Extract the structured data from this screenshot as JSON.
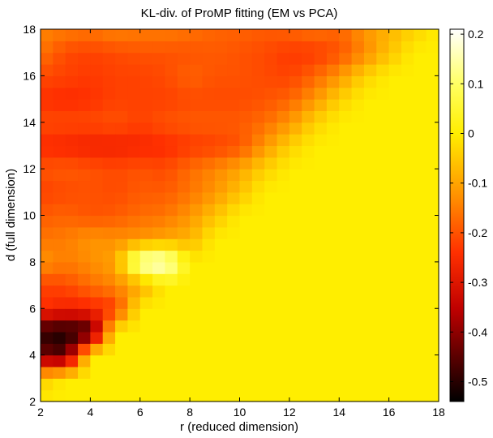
{
  "chart_data": {
    "type": "heatmap",
    "title": "KL-div. of ProMP fitting (EM vs PCA)",
    "xlabel": "r (reduced dimension)",
    "ylabel": "d (full dimension)",
    "xlim": [
      2,
      18
    ],
    "ylim": [
      2,
      18
    ],
    "x_ticks": [
      2,
      4,
      6,
      8,
      10,
      12,
      14,
      16,
      18
    ],
    "y_ticks": [
      2,
      4,
      6,
      8,
      10,
      12,
      14,
      16,
      18
    ],
    "grid": false,
    "colormap": "hot",
    "colorbar": {
      "range": [
        -0.54,
        0.21
      ],
      "ticks": [
        0.2,
        0.1,
        0,
        -0.1,
        -0.2,
        -0.3,
        -0.4,
        -0.5
      ],
      "tick_labels": [
        "0.2",
        "0.1",
        "0",
        "-0.1",
        "-0.2",
        "-0.3",
        "-0.4",
        "-0.5"
      ]
    },
    "note_region_r_ge_d": 0,
    "values_by_d": {
      "3": [
        -0.05,
        0.05
      ],
      "4": [
        -0.42,
        -0.46,
        -0.3,
        0.12
      ],
      "5": [
        -0.5,
        -0.52,
        -0.48,
        0.05
      ],
      "6": [
        -0.24,
        -0.27,
        -0.26,
        -0.23,
        -0.05
      ],
      "7": [
        -0.22,
        -0.21,
        -0.17,
        -0.14,
        -0.1,
        -0.05
      ],
      "8": [
        -0.12,
        -0.15,
        -0.13,
        -0.1,
        0.18,
        0.2,
        0.05
      ],
      "9": [
        -0.16,
        -0.15,
        -0.12,
        -0.13,
        -0.12,
        -0.1,
        -0.08,
        -0.02
      ],
      "10": [
        -0.19,
        -0.18,
        -0.2,
        -0.19,
        -0.17,
        -0.16,
        -0.12,
        -0.06,
        0.0
      ],
      "11": [
        -0.22,
        -0.21,
        -0.2,
        -0.21,
        -0.19,
        -0.19,
        -0.16,
        -0.12,
        -0.06,
        0.0
      ],
      "12": [
        -0.2,
        -0.19,
        -0.2,
        -0.21,
        -0.2,
        -0.21,
        -0.17,
        -0.14,
        -0.1,
        -0.04,
        0.0
      ],
      "13": [
        -0.25,
        -0.26,
        -0.27,
        -0.27,
        -0.26,
        -0.25,
        -0.23,
        -0.22,
        -0.2,
        -0.12,
        -0.04,
        0.0
      ],
      "14": [
        -0.21,
        -0.21,
        -0.21,
        -0.2,
        -0.22,
        -0.2,
        -0.19,
        -0.19,
        -0.19,
        -0.17,
        -0.12,
        -0.04,
        0.0
      ],
      "15": [
        -0.24,
        -0.25,
        -0.24,
        -0.22,
        -0.22,
        -0.22,
        -0.21,
        -0.21,
        -0.21,
        -0.2,
        -0.18,
        -0.12,
        -0.04,
        0.0
      ],
      "16": [
        -0.21,
        -0.22,
        -0.23,
        -0.22,
        -0.22,
        -0.21,
        -0.18,
        -0.2,
        -0.2,
        -0.21,
        -0.22,
        -0.18,
        -0.12,
        -0.04,
        0.0
      ],
      "17": [
        -0.16,
        -0.21,
        -0.22,
        -0.21,
        -0.2,
        -0.2,
        -0.2,
        -0.19,
        -0.2,
        -0.21,
        -0.23,
        -0.23,
        -0.2,
        -0.14,
        -0.06,
        0.0
      ],
      "18": [
        -0.14,
        -0.15,
        -0.16,
        -0.14,
        -0.15,
        -0.15,
        -0.16,
        -0.18,
        -0.18,
        -0.19,
        -0.18,
        -0.16,
        -0.18,
        -0.12,
        -0.08,
        -0.04,
        0.0
      ]
    }
  }
}
